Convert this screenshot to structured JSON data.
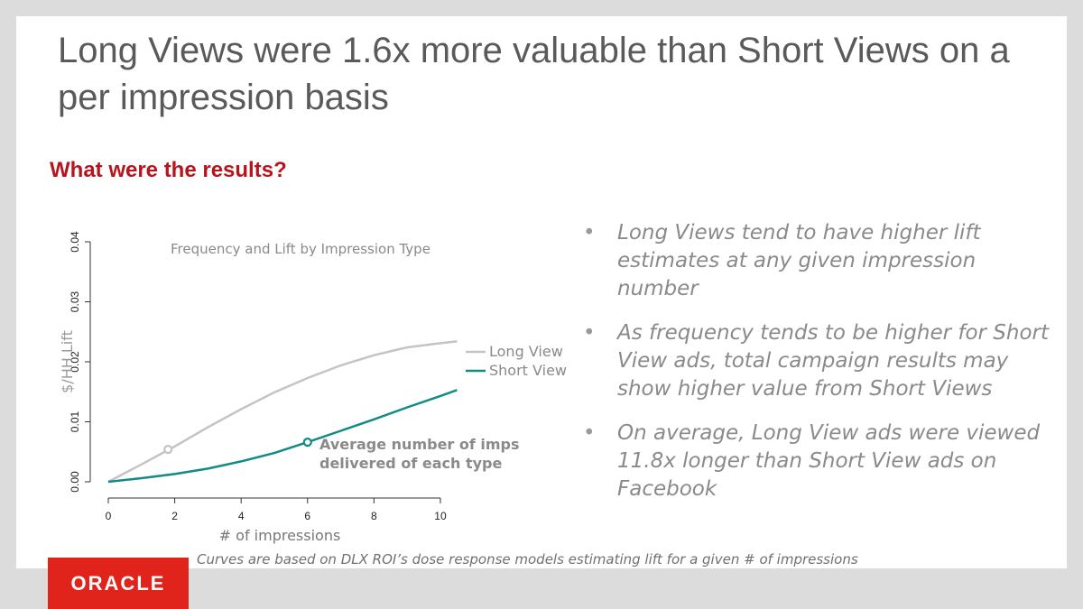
{
  "slide": {
    "title": "Long Views were 1.6x more valuable than Short Views on a per impression basis",
    "subtitle": "What were the results?",
    "bullets": [
      "Long Views tend to have higher lift estimates at any given impression number",
      "As frequency tends to be higher for Short View ads, total campaign results may show higher value from Short Views",
      "On average, Long View ads were viewed 11.8x longer than Short View ads on Facebook"
    ],
    "bullet_glyph": "•",
    "footnote": "Curves are based on DLX ROI’s dose response models estimating lift for a given # of impressions",
    "logo_text": "ORACLE"
  },
  "colors": {
    "title": "#5a5a5a",
    "subtitle": "#b8141e",
    "long_view": "#c4c4c4",
    "short_view": "#128a86",
    "logo_bg": "#e0231b"
  },
  "chart_data": {
    "type": "line",
    "title": "Frequency and Lift by Impression Type",
    "xlabel": "# of impressions",
    "ylabel": "$/HH Lift",
    "xlim": [
      0,
      10.3
    ],
    "ylim": [
      0,
      0.04
    ],
    "x_ticks": [
      "0",
      "2",
      "4",
      "6",
      "8",
      "10"
    ],
    "y_ticks": [
      "0.00",
      "0.01",
      "0.02",
      "0.03",
      "0.04"
    ],
    "legend_position": "right",
    "series": [
      {
        "name": "Long View",
        "color": "#c4c4c4",
        "x": [
          0,
          1,
          2,
          3,
          4,
          5,
          6,
          7,
          8,
          9,
          10,
          10.5
        ],
        "y": [
          0,
          0.0029,
          0.0059,
          0.0091,
          0.0121,
          0.0149,
          0.0173,
          0.0194,
          0.0211,
          0.0224,
          0.0231,
          0.0234
        ]
      },
      {
        "name": "Short View",
        "color": "#128a86",
        "x": [
          0,
          1,
          2,
          3,
          4,
          5,
          6,
          7,
          8,
          9,
          10,
          10.5
        ],
        "y": [
          0,
          0.0006,
          0.0013,
          0.0022,
          0.0034,
          0.0048,
          0.0066,
          0.0085,
          0.0104,
          0.0124,
          0.0143,
          0.0153
        ]
      }
    ],
    "markers": [
      {
        "series": "Long View",
        "x": 1.8,
        "y": 0.0054
      },
      {
        "series": "Short View",
        "x": 6,
        "y": 0.0066
      }
    ],
    "annotation": [
      "Average number of imps",
      "delivered of each type"
    ]
  }
}
